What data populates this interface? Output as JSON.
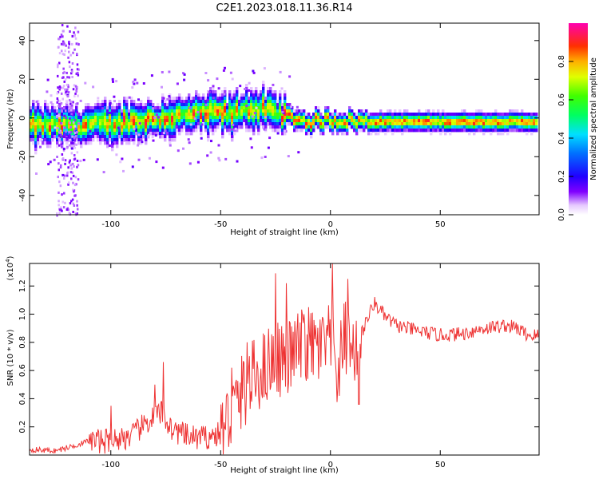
{
  "figure_title": "C2E1.2023.018.11.36.R14",
  "colors": {
    "snr_line": "#ee3333",
    "axis": "#000000",
    "background": "#ffffff"
  },
  "chart_data": [
    {
      "type": "heatmap",
      "xlabel": "Height of straight line (km)",
      "ylabel": "Frequency (Hz)",
      "xlim": [
        -137,
        95
      ],
      "ylim": [
        -50,
        49
      ],
      "xticks": [
        -100,
        -50,
        0,
        50
      ],
      "yticks": [
        -40,
        -20,
        0,
        20,
        40
      ],
      "colorbar": {
        "label": "Normalized spectral amplitude",
        "range": [
          0.0,
          1.0
        ],
        "ticks": [
          0.0,
          0.2,
          0.4,
          0.6,
          0.8
        ],
        "colormap": "rainbow"
      },
      "ridge": [
        {
          "x": -135,
          "y": -4
        },
        {
          "x": -120,
          "y": -4
        },
        {
          "x": -100,
          "y": -3
        },
        {
          "x": -85,
          "y": -1
        },
        {
          "x": -75,
          "y": 0
        },
        {
          "x": -60,
          "y": 2
        },
        {
          "x": -50,
          "y": 3
        },
        {
          "x": -45,
          "y": 1
        },
        {
          "x": -40,
          "y": 5
        },
        {
          "x": -30,
          "y": 4
        },
        {
          "x": -20,
          "y": 1
        },
        {
          "x": -10,
          "y": -2
        },
        {
          "x": 0,
          "y": -1
        },
        {
          "x": 20,
          "y": -2
        },
        {
          "x": 50,
          "y": -2
        },
        {
          "x": 94,
          "y": -2
        }
      ]
    },
    {
      "type": "line",
      "xlabel": "Height of straight line (km)",
      "ylabel": "SNR (10 * v/v)",
      "multiplier_label": "(x10",
      "multiplier_exp": "4",
      "multiplier_close": ")",
      "xlim": [
        -137,
        95
      ],
      "ylim": [
        0,
        1.36
      ],
      "xticks": [
        -100,
        -50,
        0,
        50
      ],
      "yticks": [
        0.2,
        0.4,
        0.6,
        0.8,
        1.0,
        1.2
      ],
      "series": [
        {
          "x": [
            -137,
            -125,
            -118,
            -110,
            -100,
            -90,
            -82,
            -77,
            -72,
            -65,
            -58,
            -50,
            -45,
            -40,
            -35,
            -30,
            -25,
            -20,
            -15,
            -10,
            -5,
            0,
            3,
            6,
            10,
            15,
            20,
            25,
            30,
            40,
            50,
            60,
            70,
            80,
            85,
            90,
            94
          ],
          "y": [
            0.04,
            0.03,
            0.06,
            0.1,
            0.1,
            0.14,
            0.25,
            0.3,
            0.18,
            0.13,
            0.12,
            0.15,
            0.3,
            0.45,
            0.55,
            0.62,
            0.7,
            0.68,
            0.75,
            0.78,
            0.75,
            0.8,
            0.6,
            0.85,
            0.72,
            0.9,
            1.08,
            0.98,
            0.92,
            0.88,
            0.85,
            0.86,
            0.9,
            0.92,
            0.9,
            0.85,
            0.85
          ],
          "spikes": [
            {
              "x": -100,
              "y": 0.35
            },
            {
              "x": -76,
              "y": 0.66
            },
            {
              "x": -80,
              "y": 0.5
            },
            {
              "x": -45,
              "y": 0.62
            },
            {
              "x": -38,
              "y": 0.8
            },
            {
              "x": -25,
              "y": 1.29
            },
            {
              "x": -20,
              "y": 1.22
            },
            {
              "x": -12,
              "y": 1.0
            },
            {
              "x": 1,
              "y": 1.36
            },
            {
              "x": 8,
              "y": 1.25
            },
            {
              "x": 13,
              "y": 1.1
            },
            {
              "x": 13,
              "y": 0.36
            },
            {
              "x": 4,
              "y": 0.42
            }
          ]
        }
      ]
    }
  ]
}
